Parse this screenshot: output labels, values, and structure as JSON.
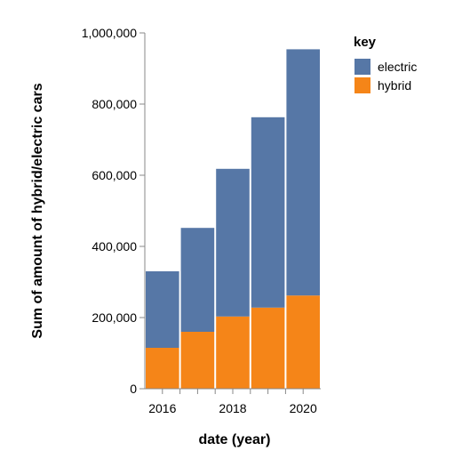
{
  "chart_data": {
    "type": "bar",
    "stacked": true,
    "x": [
      2016,
      2017,
      2018,
      2019,
      2020
    ],
    "xlabel": "date (year)",
    "x_ticks": [
      "2016",
      "2018",
      "2020"
    ],
    "ylabel": "Sum of amount of hybrid/electric cars",
    "ylim": [
      0,
      1000000
    ],
    "y_ticks": [
      0,
      200000,
      400000,
      600000,
      800000,
      1000000
    ],
    "y_tick_labels": [
      "0",
      "200,000",
      "400,000",
      "600,000",
      "800,000",
      "1,000,000"
    ],
    "grid": false,
    "legend": {
      "title": "key",
      "placement": "right"
    },
    "series": [
      {
        "name": "hybrid",
        "color": "#F58518",
        "values": [
          115000,
          160000,
          203000,
          228000,
          262000
        ]
      },
      {
        "name": "electric",
        "color": "#5677A6",
        "values": [
          215000,
          292000,
          415000,
          535000,
          692000
        ]
      }
    ],
    "legend_order": [
      "electric",
      "hybrid"
    ]
  }
}
